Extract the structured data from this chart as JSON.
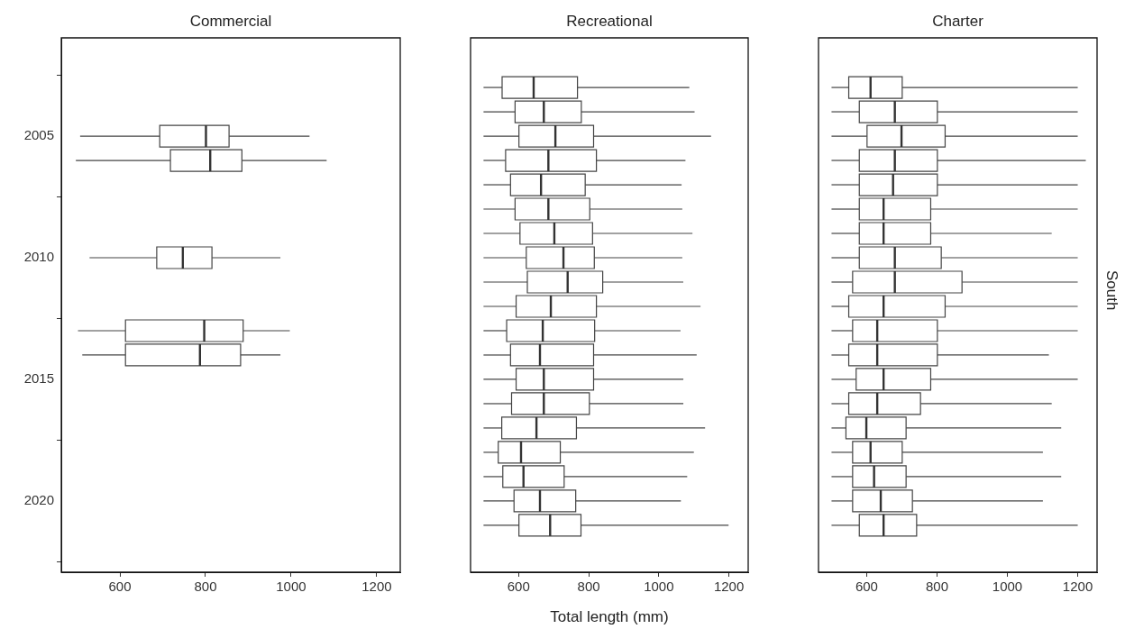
{
  "chart_data": [
    {
      "type": "box",
      "title": "Commercial",
      "orientation": "horizontal",
      "categories": [
        null,
        null,
        "2005",
        null,
        null,
        null,
        null,
        "2010",
        null,
        null,
        null,
        null,
        "2015",
        null,
        null,
        null,
        null,
        "2020",
        null
      ],
      "xlim": [
        463,
        1255
      ],
      "xticks": [
        600,
        800,
        1000,
        1200
      ],
      "boxes": [
        null,
        null,
        {
          "low": 507,
          "q1": 693,
          "median": 801,
          "q3": 855,
          "high": 1043
        },
        {
          "low": 497,
          "q1": 718,
          "median": 811,
          "q3": 885,
          "high": 1083
        },
        null,
        null,
        null,
        {
          "low": 529,
          "q1": 686,
          "median": 747,
          "q3": 815,
          "high": 975
        },
        null,
        null,
        {
          "low": 502,
          "q1": 613,
          "median": 797,
          "q3": 888,
          "high": 997
        },
        {
          "low": 512,
          "q1": 613,
          "median": 787,
          "q3": 882,
          "high": 975
        },
        null,
        null,
        null,
        null,
        null,
        null,
        null
      ]
    },
    {
      "type": "box",
      "title": "Recreational",
      "xlabel": "Total length (mm)",
      "orientation": "horizontal",
      "categories": [
        null,
        null,
        null,
        null,
        null,
        null,
        null,
        null,
        null,
        null,
        null,
        null,
        null,
        null,
        null,
        null,
        null,
        null,
        null
      ],
      "xlim": [
        463,
        1255
      ],
      "xticks": [
        600,
        800,
        1000,
        1200
      ],
      "boxes": [
        {
          "low": 500,
          "q1": 553,
          "median": 643,
          "q3": 768,
          "high": 1087
        },
        {
          "low": 500,
          "q1": 590,
          "median": 672,
          "q3": 779,
          "high": 1102
        },
        {
          "low": 500,
          "q1": 601,
          "median": 705,
          "q3": 814,
          "high": 1149
        },
        {
          "low": 500,
          "q1": 563,
          "median": 685,
          "q3": 822,
          "high": 1076
        },
        {
          "low": 500,
          "q1": 577,
          "median": 664,
          "q3": 790,
          "high": 1065
        },
        {
          "low": 500,
          "q1": 590,
          "median": 685,
          "q3": 803,
          "high": 1067
        },
        {
          "low": 500,
          "q1": 604,
          "median": 702,
          "q3": 811,
          "high": 1096
        },
        {
          "low": 500,
          "q1": 622,
          "median": 728,
          "q3": 816,
          "high": 1067
        },
        {
          "low": 500,
          "q1": 625,
          "median": 740,
          "q3": 840,
          "high": 1070
        },
        {
          "low": 500,
          "q1": 593,
          "median": 692,
          "q3": 822,
          "high": 1119
        },
        {
          "low": 500,
          "q1": 566,
          "median": 669,
          "q3": 817,
          "high": 1062
        },
        {
          "low": 500,
          "q1": 577,
          "median": 661,
          "q3": 814,
          "high": 1108
        },
        {
          "low": 500,
          "q1": 593,
          "median": 672,
          "q3": 814,
          "high": 1070
        },
        {
          "low": 500,
          "q1": 580,
          "median": 672,
          "q3": 802,
          "high": 1070
        },
        {
          "low": 500,
          "q1": 552,
          "median": 651,
          "q3": 765,
          "high": 1132
        },
        {
          "low": 500,
          "q1": 542,
          "median": 607,
          "q3": 719,
          "high": 1100
        },
        {
          "low": 500,
          "q1": 555,
          "median": 614,
          "q3": 730,
          "high": 1081
        },
        {
          "low": 500,
          "q1": 587,
          "median": 661,
          "q3": 763,
          "high": 1063
        },
        {
          "low": 500,
          "q1": 601,
          "median": 690,
          "q3": 778,
          "high": 1199
        }
      ]
    },
    {
      "type": "box",
      "title": "Charter",
      "orientation": "horizontal",
      "annotations": [
        "South"
      ],
      "categories": [
        null,
        null,
        null,
        null,
        null,
        null,
        null,
        null,
        null,
        null,
        null,
        null,
        null,
        null,
        null,
        null,
        null,
        null,
        null
      ],
      "xlim": [
        463,
        1255
      ],
      "xticks": [
        600,
        800,
        1000,
        1200
      ],
      "boxes": [
        {
          "low": 500,
          "q1": 549,
          "median": 611,
          "q3": 701,
          "high": 1200
        },
        {
          "low": 500,
          "q1": 579,
          "median": 680,
          "q3": 801,
          "high": 1200
        },
        {
          "low": 500,
          "q1": 601,
          "median": 699,
          "q3": 823,
          "high": 1200
        },
        {
          "low": 500,
          "q1": 579,
          "median": 680,
          "q3": 801,
          "high": 1223
        },
        {
          "low": 500,
          "q1": 579,
          "median": 675,
          "q3": 801,
          "high": 1200
        },
        {
          "low": 500,
          "q1": 579,
          "median": 648,
          "q3": 782,
          "high": 1200
        },
        {
          "low": 500,
          "q1": 579,
          "median": 648,
          "q3": 782,
          "high": 1126
        },
        {
          "low": 500,
          "q1": 579,
          "median": 680,
          "q3": 812,
          "high": 1200
        },
        {
          "low": 500,
          "q1": 560,
          "median": 680,
          "q3": 871,
          "high": 1200
        },
        {
          "low": 500,
          "q1": 549,
          "median": 648,
          "q3": 823,
          "high": 1200
        },
        {
          "low": 500,
          "q1": 560,
          "median": 630,
          "q3": 801,
          "high": 1200
        },
        {
          "low": 500,
          "q1": 549,
          "median": 630,
          "q3": 801,
          "high": 1118
        },
        {
          "low": 500,
          "q1": 570,
          "median": 648,
          "q3": 782,
          "high": 1200
        },
        {
          "low": 500,
          "q1": 549,
          "median": 630,
          "q3": 753,
          "high": 1126
        },
        {
          "low": 500,
          "q1": 541,
          "median": 599,
          "q3": 712,
          "high": 1153
        },
        {
          "low": 500,
          "q1": 560,
          "median": 611,
          "q3": 701,
          "high": 1101
        },
        {
          "low": 500,
          "q1": 560,
          "median": 621,
          "q3": 712,
          "high": 1153
        },
        {
          "low": 500,
          "q1": 560,
          "median": 640,
          "q3": 730,
          "high": 1101
        },
        {
          "low": 500,
          "q1": 579,
          "median": 648,
          "q3": 742,
          "high": 1200
        }
      ]
    }
  ]
}
